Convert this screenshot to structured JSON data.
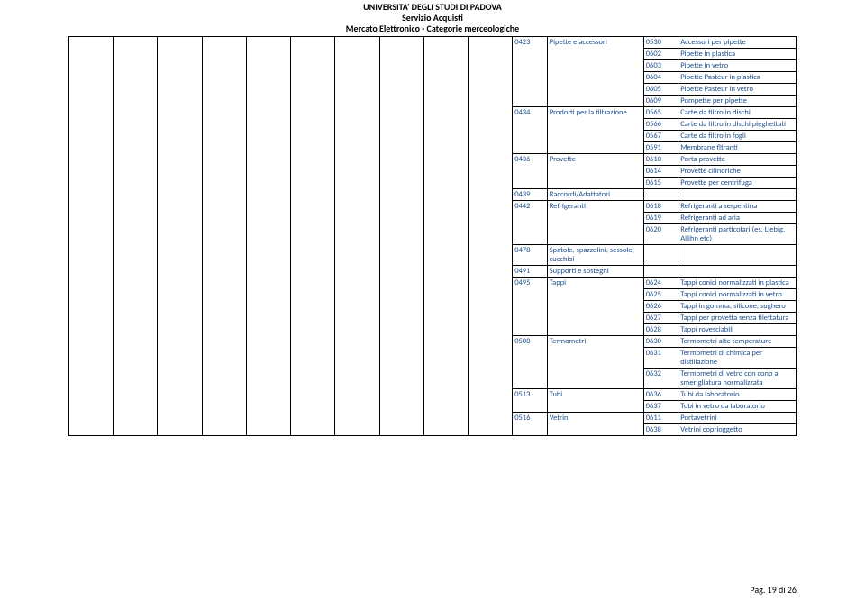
{
  "header": {
    "line1": "UNIVERSITA' DEGLI STUDI DI PADOVA",
    "line2": "Servizio Acquisti",
    "line3": "Mercato Elettronico - Categorie merceologiche"
  },
  "columns": {
    "empty_count": 10,
    "widths": {
      "code1": 36,
      "name1": 100,
      "code2": 36,
      "name2": 122
    }
  },
  "rows": [
    {
      "c1": "0423",
      "n1": "Pipette e accessori",
      "c2": "0530",
      "n2": "Accessori per pipette",
      "r1": 1,
      "r2": 1
    },
    {
      "c2": "0602",
      "n2": "Pipette in plastica",
      "span_prev": true
    },
    {
      "c2": "0603",
      "n2": "Pipette in vetro",
      "span_prev": true
    },
    {
      "c2": "0604",
      "n2": "Pipette Pasteur in plastica",
      "span_prev": true
    },
    {
      "c2": "0605",
      "n2": "Pipette Pasteur in vetro",
      "span_prev": true
    },
    {
      "c2": "0609",
      "n2": "Pompette per pipette",
      "span_prev": true
    },
    {
      "c1": "0434",
      "n1": "Prodotti per la filtrazione",
      "c2": "0565",
      "n2": "Carte da filtro in dischi",
      "r1": 1,
      "r2": 1
    },
    {
      "c2": "0566",
      "n2": "Carte da filtro in dischi pieghettati",
      "span_prev": true
    },
    {
      "c2": "0567",
      "n2": "Carte da filtro in fogli",
      "span_prev": true
    },
    {
      "c2": "0591",
      "n2": "Membrane fltranti",
      "span_prev": true
    },
    {
      "c1": "0436",
      "n1": "Provette",
      "c2": "0610",
      "n2": "Porta provette",
      "r1": 1,
      "r2": 1
    },
    {
      "c2": "0614",
      "n2": "Provette cilindriche",
      "span_prev": true
    },
    {
      "c2": "0615",
      "n2": "Provette per centrifuga",
      "span_prev": true
    },
    {
      "c1": "0439",
      "n1": "Raccordi/Adattatori",
      "c2": "",
      "n2": "",
      "r1": 1,
      "r2": 1
    },
    {
      "c1": "0442",
      "n1": "Refrigeranti",
      "c2": "0618",
      "n2": "Refrigeranti a serpentina",
      "r1": 1,
      "r2": 1
    },
    {
      "c2": "0619",
      "n2": "Refrigeranti ad aria",
      "span_prev": true
    },
    {
      "c2": "0620",
      "n2": "Refrigeranti particolari (es. Liebig, Allihn etc)",
      "span_prev": true
    },
    {
      "c1": "0478",
      "n1": "Spatole, spazzolini, sessole, cucchiai",
      "c2": "",
      "n2": "",
      "r1": 1,
      "r2": 1
    },
    {
      "c1": "0491",
      "n1": "Supporti e sostegni",
      "c2": "",
      "n2": "",
      "r1": 1,
      "r2": 1
    },
    {
      "c1": "0495",
      "n1": "Tappi",
      "c2": "0624",
      "n2": "Tappi conici normalizzati in plastica",
      "r1": 1,
      "r2": 1
    },
    {
      "c2": "0625",
      "n2": "Tappi conici normalizzati in vetro",
      "span_prev": true
    },
    {
      "c2": "0626",
      "n2": "Tappi in gomma, silicone, sughero",
      "span_prev": true
    },
    {
      "c2": "0627",
      "n2": "Tappi per provetta senza filettatura",
      "span_prev": true
    },
    {
      "c2": "0628",
      "n2": "Tappi rovesciabili",
      "span_prev": true
    },
    {
      "c1": "0508",
      "n1": "Termometri",
      "c2": "0630",
      "n2": "Termometri alte temperature",
      "r1": 1,
      "r2": 1
    },
    {
      "c2": "0631",
      "n2": "Termometri di chimica per distillazione",
      "span_prev": true
    },
    {
      "c2": "0632",
      "n2": "Termometri di vetro con cono a smerigliatura normalizzata",
      "span_prev": true
    },
    {
      "c1": "0513",
      "n1": "Tubi",
      "c2": "0636",
      "n2": "Tubi da laboratorio",
      "r1": 1,
      "r2": 1
    },
    {
      "c2": "0637",
      "n2": "Tubi in vetro da laboratorio",
      "span_prev": true
    },
    {
      "c1": "0516",
      "n1": "Vetrini",
      "c2": "0611",
      "n2": "Portavetrini",
      "r1": 1,
      "r2": 1
    },
    {
      "c2": "0638",
      "n2": "Vetrini coprioggetto",
      "span_prev": true
    }
  ],
  "groups": [
    {
      "start": 0,
      "c1": "0423",
      "n1": "Pipette e accessori",
      "span": 6
    },
    {
      "start": 6,
      "c1": "0434",
      "n1": "Prodotti per la filtrazione",
      "span": 4
    },
    {
      "start": 10,
      "c1": "0436",
      "n1": "Provette",
      "span": 3
    },
    {
      "start": 13,
      "c1": "0439",
      "n1": "Raccordi/Adattatori",
      "span": 1
    },
    {
      "start": 14,
      "c1": "0442",
      "n1": "Refrigeranti",
      "span": 3
    },
    {
      "start": 17,
      "c1": "0478",
      "n1": "Spatole, spazzolini, sessole, cucchiai",
      "span": 1
    },
    {
      "start": 18,
      "c1": "0491",
      "n1": "Supporti e sostegni",
      "span": 1
    },
    {
      "start": 19,
      "c1": "0495",
      "n1": "Tappi",
      "span": 5
    },
    {
      "start": 24,
      "c1": "0508",
      "n1": "Termometri",
      "span": 3
    },
    {
      "start": 27,
      "c1": "0513",
      "n1": "Tubi",
      "span": 2
    },
    {
      "start": 29,
      "c1": "0516",
      "n1": "Vetrini",
      "span": 2
    }
  ],
  "footer": {
    "text": "Pag. 19 di 26"
  },
  "colors": {
    "text_blue": "#1f4e8c",
    "border": "#000000",
    "background": "#ffffff"
  }
}
